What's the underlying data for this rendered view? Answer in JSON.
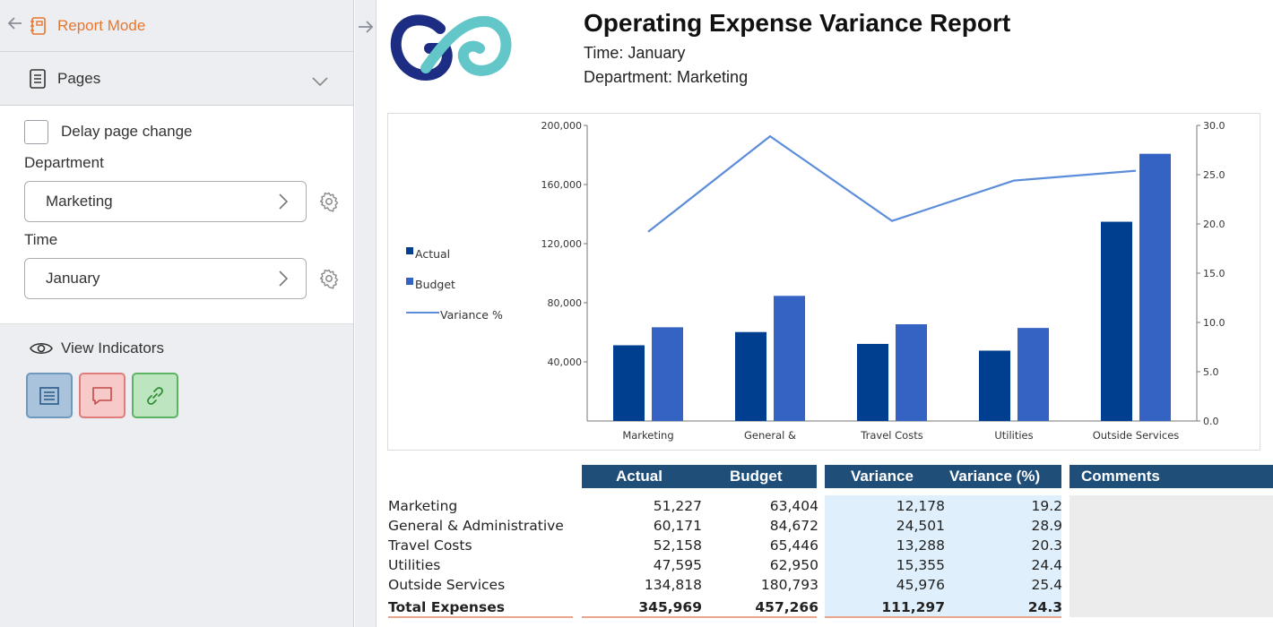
{
  "sidebar": {
    "mode_label": "Report Mode",
    "pages_label": "Pages",
    "delay_label": "Delay page change",
    "department": {
      "label": "Department",
      "value": "Marketing"
    },
    "time": {
      "label": "Time",
      "value": "January"
    },
    "view_indicators_label": "View Indicators"
  },
  "report": {
    "title": "Operating Expense Variance Report",
    "time_line": "Time: January",
    "department_line": "Department: Marketing"
  },
  "chart_data": {
    "type": "bar",
    "categories": [
      "Marketing",
      "General &",
      "Travel Costs",
      "Utilities",
      "Outside Services"
    ],
    "series": [
      {
        "name": "Actual",
        "type": "bar",
        "axis": "left",
        "color": "#003f8f",
        "values": [
          51227,
          60171,
          52158,
          47595,
          134818
        ]
      },
      {
        "name": "Budget",
        "type": "bar",
        "axis": "left",
        "color": "#3563c4",
        "values": [
          63404,
          84672,
          65446,
          62950,
          180793
        ]
      },
      {
        "name": "Variance %",
        "type": "line",
        "axis": "right",
        "color": "#5b8ddb",
        "values": [
          19.2,
          28.9,
          20.3,
          24.4,
          25.4
        ]
      }
    ],
    "y_left": {
      "min": 0,
      "max": 200000,
      "ticks": [
        "40,000",
        "80,000",
        "120,000",
        "160,000",
        "200,000"
      ],
      "tick_values": [
        40000,
        80000,
        120000,
        160000,
        200000
      ]
    },
    "y_right": {
      "min": 0,
      "max": 30,
      "ticks": [
        "0.0",
        "5.0",
        "10.0",
        "15.0",
        "20.0",
        "25.0",
        "30.0"
      ],
      "tick_values": [
        0,
        5,
        10,
        15,
        20,
        25,
        30
      ]
    },
    "legend_position": "left",
    "grid": false
  },
  "table": {
    "headers": {
      "actual": "Actual",
      "budget": "Budget",
      "variance": "Variance",
      "variance_pct": "Variance (%)",
      "comments": "Comments"
    },
    "rows": [
      {
        "name": "Marketing",
        "actual": "51,227",
        "budget": "63,404",
        "variance": "12,178",
        "pct": "19.2"
      },
      {
        "name": "General & Administrative",
        "actual": "60,171",
        "budget": "84,672",
        "variance": "24,501",
        "pct": "28.9"
      },
      {
        "name": "Travel Costs",
        "actual": "52,158",
        "budget": "65,446",
        "variance": "13,288",
        "pct": "20.3"
      },
      {
        "name": "Utilities",
        "actual": "47,595",
        "budget": "62,950",
        "variance": "15,355",
        "pct": "24.4"
      },
      {
        "name": "Outside Services",
        "actual": "134,818",
        "budget": "180,793",
        "variance": "45,976",
        "pct": "25.4"
      }
    ],
    "total": {
      "name": "Total Expenses",
      "actual": "345,969",
      "budget": "457,266",
      "variance": "111,297",
      "pct": "24.3"
    }
  }
}
